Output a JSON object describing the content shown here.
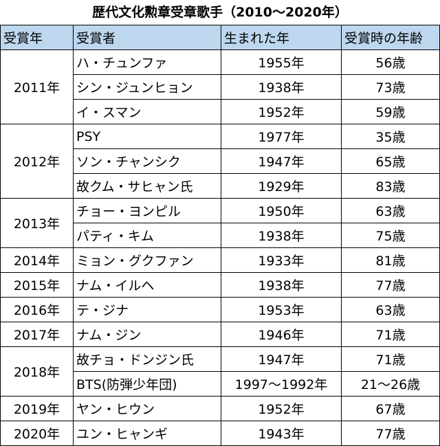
{
  "title": "歴代文化勲章受章歌手（2010～2020年）",
  "headers": [
    "受賞年",
    "受賞者",
    "生まれた年",
    "受賞時の年齢"
  ],
  "groups": [
    {
      "year": "2011年",
      "rows": [
        {
          "name": "ハ・チュンファ",
          "born": "1955年",
          "age": "56歳"
        },
        {
          "name": "シン・ジュンヒョン",
          "born": "1938年",
          "age": "73歳"
        },
        {
          "name": "イ・スマン",
          "born": "1952年",
          "age": "59歳"
        }
      ]
    },
    {
      "year": "2012年",
      "rows": [
        {
          "name": "PSY",
          "born": "1977年",
          "age": "35歳"
        },
        {
          "name": "ソン・チャンシク",
          "born": "1947年",
          "age": "65歳"
        },
        {
          "name": "故クム・サヒャン氏",
          "born": "1929年",
          "age": "83歳"
        }
      ]
    },
    {
      "year": "2013年",
      "rows": [
        {
          "name": "チョー・ヨンピル",
          "born": "1950年",
          "age": "63歳"
        },
        {
          "name": "パティ・キム",
          "born": "1938年",
          "age": "75歳"
        }
      ]
    },
    {
      "year": "2014年",
      "rows": [
        {
          "name": "ミョン・グクファン",
          "born": "1933年",
          "age": "81歳"
        }
      ]
    },
    {
      "year": "2015年",
      "rows": [
        {
          "name": "ナム・イルヘ",
          "born": "1938年",
          "age": "77歳"
        }
      ]
    },
    {
      "year": "2016年",
      "rows": [
        {
          "name": "テ・ジナ",
          "born": "1953年",
          "age": "63歳"
        }
      ]
    },
    {
      "year": "2017年",
      "rows": [
        {
          "name": "ナム・ジン",
          "born": "1946年",
          "age": "71歳"
        }
      ]
    },
    {
      "year": "2018年",
      "rows": [
        {
          "name": "故チョ・ドンジン氏",
          "born": "1947年",
          "age": "71歳"
        },
        {
          "name": "BTS(防弾少年団)",
          "born": "1997～1992年",
          "age": "21～26歳"
        }
      ]
    },
    {
      "year": "2019年",
      "rows": [
        {
          "name": "ヤン・ヒウン",
          "born": "1952年",
          "age": "67歳"
        }
      ]
    },
    {
      "year": "2020年",
      "rows": [
        {
          "name": "ユン・ヒャンギ",
          "born": "1943年",
          "age": "77歳"
        }
      ]
    }
  ]
}
